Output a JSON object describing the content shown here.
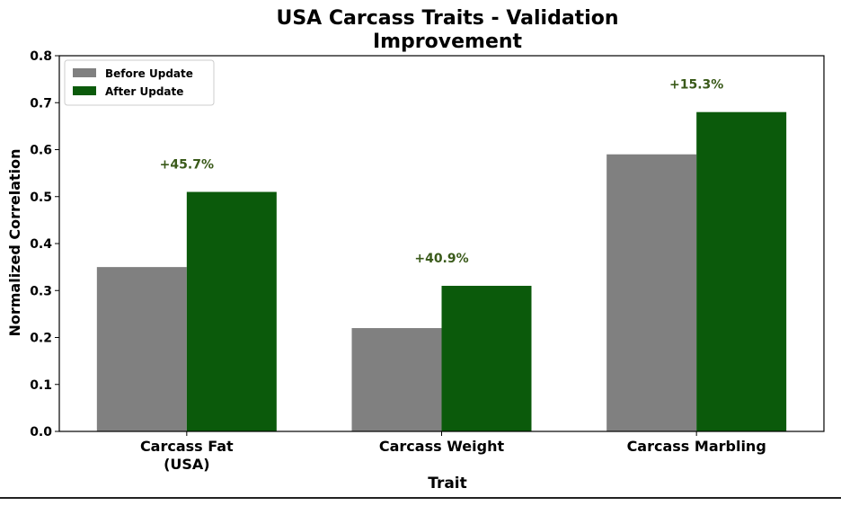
{
  "chart_data": {
    "type": "bar",
    "title_lines": [
      "USA Carcass Traits - Validation",
      "Improvement"
    ],
    "xlabel": "Trait",
    "ylabel": "Normalized Correlation",
    "categories": [
      [
        "Carcass Fat",
        "(USA)"
      ],
      [
        "Carcass Weight"
      ],
      [
        "Carcass Marbling"
      ]
    ],
    "series": [
      {
        "name": "Before Update",
        "color": "#808080",
        "values": [
          0.35,
          0.22,
          0.59
        ]
      },
      {
        "name": "After Update",
        "color": "#0b5a0b",
        "values": [
          0.51,
          0.31,
          0.68
        ]
      }
    ],
    "annotations": [
      "+45.7%",
      "+40.9%",
      "+15.3%"
    ],
    "annotation_color": "#3a5a1a",
    "ylim": [
      0,
      0.8
    ],
    "yticks": [
      "0.0",
      "0.1",
      "0.2",
      "0.3",
      "0.4",
      "0.5",
      "0.6",
      "0.7",
      "0.8"
    ],
    "grid": false,
    "legend": "top-left"
  }
}
